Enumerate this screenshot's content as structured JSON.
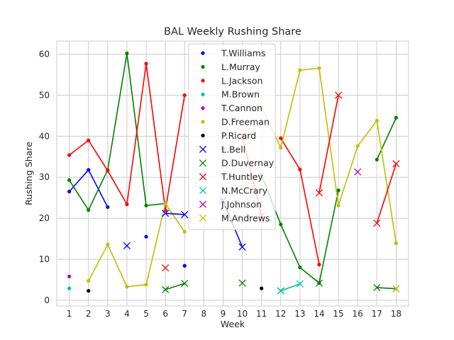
{
  "chart_data": {
    "type": "line",
    "title": "BAL Weekly Rushing Share",
    "xlabel": "Week",
    "ylabel": "Rushing Share",
    "xlim": [
      0.35,
      18.65
    ],
    "ylim": [
      -1.4,
      63.2
    ],
    "xticks": [
      1,
      2,
      3,
      4,
      5,
      6,
      7,
      8,
      9,
      10,
      11,
      12,
      13,
      14,
      15,
      16,
      17,
      18
    ],
    "yticks": [
      0,
      10,
      20,
      30,
      40,
      50,
      60
    ],
    "grid": true,
    "legend_position": "upper-center",
    "series": [
      {
        "name": "T.Williams",
        "color": "#0000ff",
        "marker": "dot",
        "points": [
          [
            1,
            26.5
          ],
          [
            2,
            31.8
          ],
          [
            3,
            22.7
          ],
          [
            5,
            15.5
          ],
          [
            7,
            8.4
          ],
          [
            9,
            37.0
          ]
        ]
      },
      {
        "name": "L.Murray",
        "color": "#008000",
        "marker": "dot",
        "points": [
          [
            1,
            29.3
          ],
          [
            2,
            22.0
          ],
          [
            3,
            31.8
          ],
          [
            4,
            60.2
          ],
          [
            5,
            23.1
          ],
          [
            6,
            23.6
          ],
          [
            11,
            30.5
          ],
          [
            12,
            18.5
          ],
          [
            13,
            8.0
          ],
          [
            14,
            4.2
          ],
          [
            15,
            26.8
          ],
          [
            17,
            34.3
          ],
          [
            18,
            44.5
          ]
        ]
      },
      {
        "name": "L.Jackson",
        "color": "#ff0000",
        "marker": "dot",
        "points": [
          [
            1,
            35.4
          ],
          [
            2,
            39.0
          ],
          [
            3,
            31.6
          ],
          [
            4,
            23.4
          ],
          [
            5,
            57.7
          ],
          [
            6,
            22.0
          ],
          [
            7,
            50.0
          ],
          [
            12,
            39.5
          ],
          [
            13,
            31.9
          ],
          [
            14,
            8.7
          ]
        ]
      },
      {
        "name": "M.Brown",
        "color": "#00bfbf",
        "marker": "dot",
        "points": [
          [
            1,
            2.9
          ]
        ]
      },
      {
        "name": "T.Cannon",
        "color": "#bf00bf",
        "marker": "dot",
        "points": [
          [
            1,
            5.8
          ]
        ]
      },
      {
        "name": "D.Freeman",
        "color": "#bfbf00",
        "marker": "dot",
        "points": [
          [
            2,
            4.7
          ],
          [
            3,
            13.6
          ],
          [
            4,
            3.3
          ],
          [
            5,
            3.8
          ],
          [
            6,
            23.6
          ],
          [
            7,
            16.7
          ],
          [
            11,
            47.0
          ],
          [
            12,
            37.2
          ],
          [
            13,
            56.1
          ],
          [
            14,
            56.6
          ],
          [
            15,
            23.1
          ],
          [
            16,
            37.6
          ],
          [
            17,
            43.8
          ],
          [
            18,
            13.9
          ]
        ]
      },
      {
        "name": "P.Ricard",
        "color": "#000000",
        "marker": "dot",
        "points": [
          [
            2,
            2.3
          ],
          [
            11,
            2.9
          ]
        ]
      },
      {
        "name": "L.Bell",
        "color": "#0000ff",
        "marker": "x",
        "points": [
          [
            4,
            13.3
          ],
          [
            6,
            21.2
          ],
          [
            7,
            20.9
          ],
          [
            9,
            24.3
          ],
          [
            10,
            13.0
          ]
        ]
      },
      {
        "name": "D.Duvernay",
        "color": "#008000",
        "marker": "x",
        "points": [
          [
            6,
            2.6
          ],
          [
            7,
            4.1
          ],
          [
            10,
            4.2
          ],
          [
            12,
            2.3
          ],
          [
            14,
            4.2
          ],
          [
            17,
            3.1
          ],
          [
            18,
            2.8
          ]
        ]
      },
      {
        "name": "T.Huntley",
        "color": "#ff0000",
        "marker": "x",
        "points": [
          [
            6,
            7.9
          ],
          [
            10,
            40.0
          ],
          [
            11,
            20.6
          ],
          [
            14,
            26.2
          ],
          [
            15,
            50.0
          ],
          [
            17,
            18.8
          ],
          [
            18,
            33.3
          ]
        ]
      },
      {
        "name": "N.McCrary",
        "color": "#00bfbf",
        "marker": "x",
        "points": [
          [
            12,
            2.3
          ],
          [
            13,
            4.0
          ]
        ]
      },
      {
        "name": "J.Johnson",
        "color": "#bf00bf",
        "marker": "x",
        "points": [
          [
            16,
            31.3
          ]
        ]
      },
      {
        "name": "M.Andrews",
        "color": "#bfbf00",
        "marker": "x",
        "points": [
          [
            18,
            2.8
          ]
        ]
      }
    ]
  }
}
